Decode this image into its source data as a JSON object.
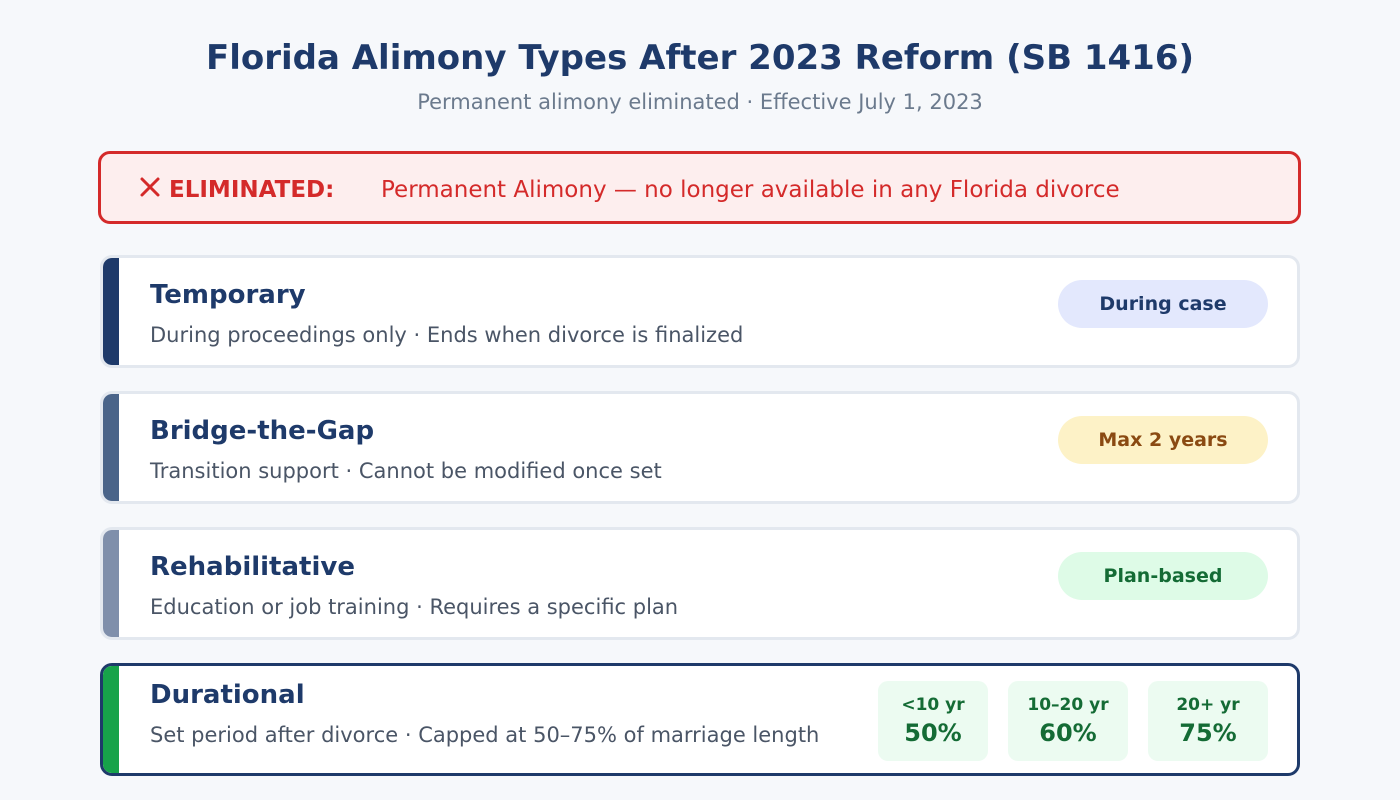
{
  "header": {
    "title": "Florida Alimony Types After 2023 Reform (SB 1416)",
    "subtitle": "Permanent alimony eliminated · Effective July 1, 2023"
  },
  "banner": {
    "icon": "x-icon",
    "label": "ELIMINATED:",
    "text": "Permanent Alimony — no longer available in any Florida divorce",
    "color": "#d42a2a"
  },
  "types": [
    {
      "title": "Temporary",
      "description": "During proceedings only · Ends when divorce is finalized",
      "badge": "During case",
      "accent_color": "#1e3a6a",
      "badge_bg": "#e3e8fd",
      "badge_color": "#1e3a6a"
    },
    {
      "title": "Bridge-the-Gap",
      "description": "Transition support · Cannot be modified once set",
      "badge": "Max 2 years",
      "accent_color": "#4a6489",
      "badge_bg": "#fdf2c7",
      "badge_color": "#8a4a12"
    },
    {
      "title": "Rehabilitative",
      "description": "Education or job training · Requires a specific plan",
      "badge": "Plan-based",
      "accent_color": "#7f8fab",
      "badge_bg": "#defbe7",
      "badge_color": "#146b35"
    },
    {
      "title": "Durational",
      "description": "Set period after divorce · Capped at 50–75% of marriage length",
      "accent_color": "#17a34a",
      "tiers": [
        {
          "range": "<10 yr",
          "percent": "50%"
        },
        {
          "range": "10–20 yr",
          "percent": "60%"
        },
        {
          "range": "20+ yr",
          "percent": "75%"
        }
      ]
    }
  ]
}
